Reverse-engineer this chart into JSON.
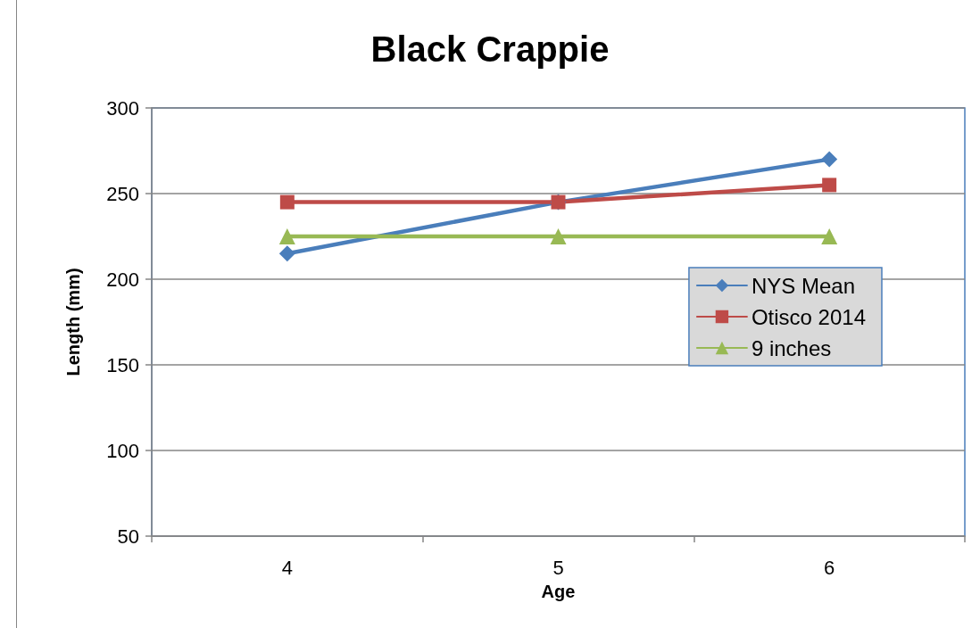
{
  "chart_data": {
    "type": "line",
    "title": "Black Crappie",
    "xlabel": "Age",
    "ylabel": "Length (mm)",
    "categories": [
      "4",
      "5",
      "6"
    ],
    "series": [
      {
        "name": "NYS Mean",
        "color": "#4a7ebb",
        "marker": "diamond",
        "values": [
          215,
          245,
          270
        ]
      },
      {
        "name": "Otisco 2014",
        "color": "#be4b48",
        "marker": "square",
        "values": [
          245,
          245,
          255
        ]
      },
      {
        "name": "9 inches",
        "color": "#98b954",
        "marker": "triangle",
        "values": [
          225,
          225,
          225
        ]
      }
    ],
    "ylim": [
      50,
      300
    ],
    "yticks": [
      50,
      100,
      150,
      200,
      250,
      300
    ],
    "grid": "y",
    "legend": "right",
    "line_style": "solid"
  }
}
